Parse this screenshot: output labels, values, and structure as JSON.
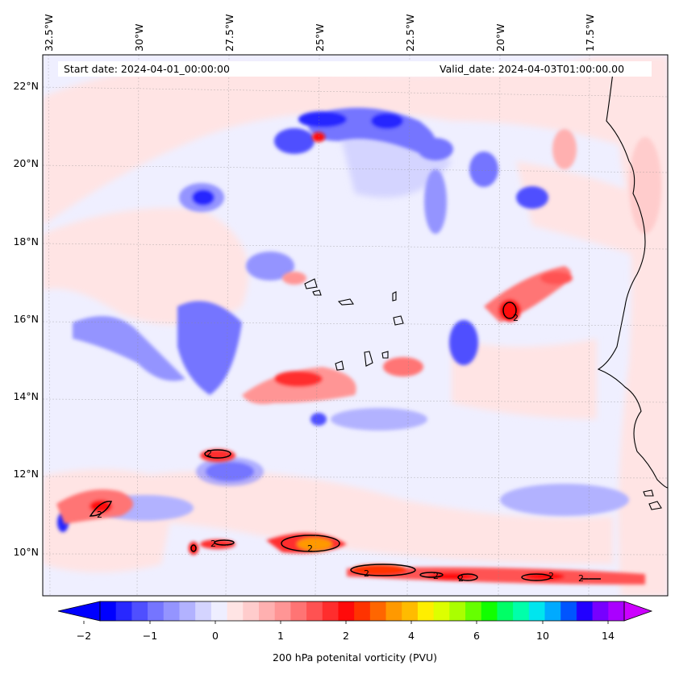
{
  "map": {
    "info": {
      "start_date": "Start date: 2024-04-01_00:00:00",
      "valid_date": "Valid_date: 2024-04-03T01:00:00.00"
    },
    "lon_labels": [
      "32.5°W",
      "30°W",
      "27.5°W",
      "25°W",
      "22.5°W",
      "20°W",
      "17.5°W"
    ],
    "lat_labels": [
      "22°N",
      "20°N",
      "18°N",
      "16°N",
      "14°N",
      "12°N",
      "10°N"
    ],
    "contour_label": "2",
    "colorbar": {
      "label": "200 hPa potenital vorticity (PVU)",
      "ticks": [
        "−2",
        "−1",
        "0",
        "1",
        "2",
        "4",
        "6",
        "10",
        "14"
      ],
      "colors": [
        "#0000ff",
        "#2828ff",
        "#4f4fff",
        "#7575ff",
        "#9494ff",
        "#b2b2ff",
        "#d4d4ff",
        "#eeeeff",
        "#ffe4e4",
        "#ffcccc",
        "#ffb0b0",
        "#ff9595",
        "#ff7474",
        "#ff5252",
        "#ff2d2d",
        "#ff0a0a",
        "#ff3300",
        "#ff6600",
        "#ff9900",
        "#ffbb00",
        "#ffee00",
        "#ddff00",
        "#aaff00",
        "#66ff00",
        "#11ff00",
        "#00ff66",
        "#00ffaa",
        "#00e5ee",
        "#00aaff",
        "#0055ff",
        "#2200ff",
        "#7700ff",
        "#aa00ff"
      ],
      "under_color": "#0000ff",
      "over_color": "#cc00ff"
    }
  }
}
